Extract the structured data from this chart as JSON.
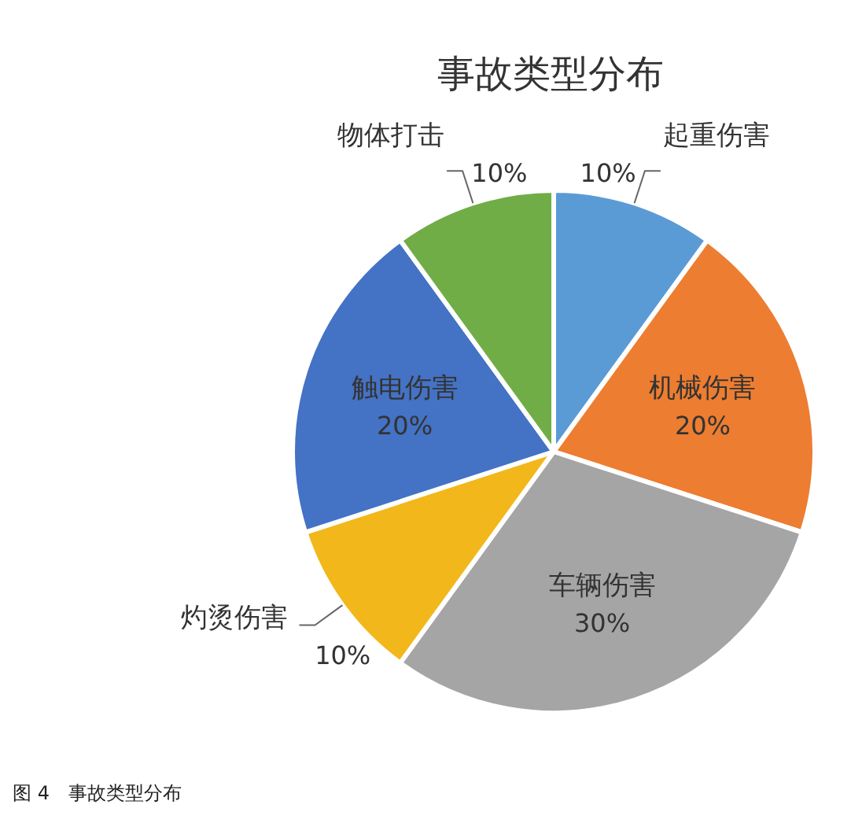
{
  "chart_data": {
    "type": "pie",
    "title": "事故类型分布",
    "categories": [
      "起重伤害",
      "机械伤害",
      "车辆伤害",
      "灼烫伤害",
      "触电伤害",
      "物体打击"
    ],
    "values": [
      10,
      20,
      30,
      10,
      20,
      10
    ],
    "colors": [
      "#5b9bd5",
      "#ed7d31",
      "#a5a5a5",
      "#f2b71a",
      "#4472c4",
      "#70ad47"
    ],
    "value_labels": [
      "10%",
      "20%",
      "30%",
      "10%",
      "20%",
      "10%"
    ],
    "annotations": [
      "图 4　事故类型分布"
    ]
  }
}
